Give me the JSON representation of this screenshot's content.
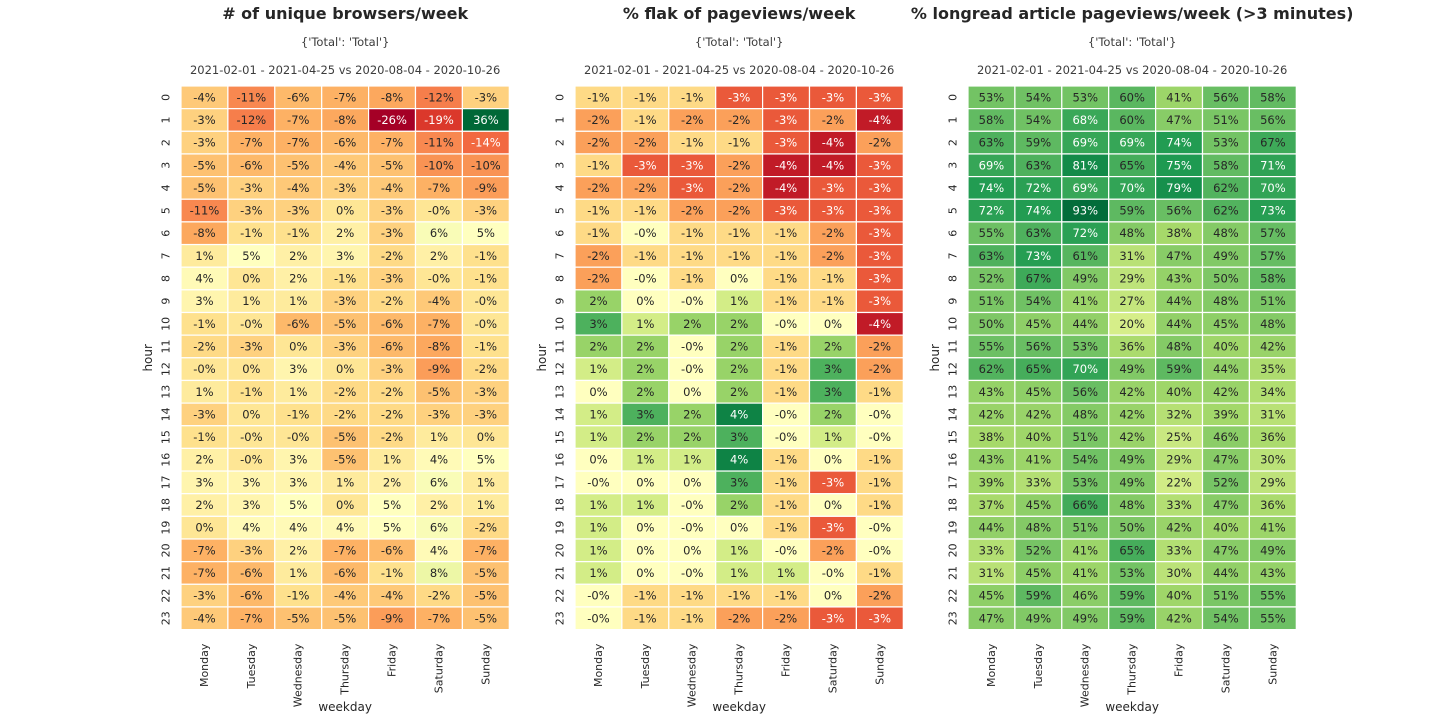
{
  "chart_data": [
    {
      "type": "heatmap",
      "title": "# of unique browsers/week",
      "subtitle": "{'Total': 'Total'}",
      "period": "2021-02-01 - 2021-04-25 vs 2020-08-04 - 2020-10-26",
      "xlabel": "weekday",
      "ylabel": "hour",
      "x": [
        "Monday",
        "Tuesday",
        "Wednesday",
        "Thursday",
        "Friday",
        "Saturday",
        "Sunday"
      ],
      "y": [
        "0",
        "1",
        "2",
        "3",
        "4",
        "5",
        "6",
        "7",
        "8",
        "9",
        "10",
        "11",
        "12",
        "13",
        "14",
        "15",
        "16",
        "17",
        "18",
        "19",
        "20",
        "21",
        "22",
        "23"
      ],
      "colormap": "RdYlGn",
      "color_range": [
        -26,
        36
      ],
      "cells": [
        [
          "-4%",
          "-11%",
          "-6%",
          "-7%",
          "-8%",
          "-12%",
          "-3%"
        ],
        [
          "-3%",
          "-12%",
          "-7%",
          "-8%",
          "-26%",
          "-19%",
          "36%"
        ],
        [
          "-3%",
          "-7%",
          "-7%",
          "-6%",
          "-7%",
          "-11%",
          "-14%"
        ],
        [
          "-5%",
          "-6%",
          "-5%",
          "-4%",
          "-5%",
          "-10%",
          "-10%"
        ],
        [
          "-5%",
          "-3%",
          "-4%",
          "-3%",
          "-4%",
          "-7%",
          "-9%"
        ],
        [
          "-11%",
          "-3%",
          "-3%",
          "0%",
          "-3%",
          "-0%",
          "-3%"
        ],
        [
          "-8%",
          "-1%",
          "-1%",
          "2%",
          "-3%",
          "6%",
          "5%"
        ],
        [
          "1%",
          "5%",
          "2%",
          "3%",
          "-2%",
          "2%",
          "-1%"
        ],
        [
          "4%",
          "0%",
          "2%",
          "-1%",
          "-3%",
          "-0%",
          "-1%"
        ],
        [
          "3%",
          "1%",
          "1%",
          "-3%",
          "-2%",
          "-4%",
          "-0%"
        ],
        [
          "-1%",
          "-0%",
          "-6%",
          "-5%",
          "-6%",
          "-7%",
          "-0%"
        ],
        [
          "-2%",
          "-3%",
          "0%",
          "-3%",
          "-6%",
          "-8%",
          "-1%"
        ],
        [
          "-0%",
          "0%",
          "3%",
          "0%",
          "-3%",
          "-9%",
          "-2%"
        ],
        [
          "1%",
          "-1%",
          "1%",
          "-2%",
          "-2%",
          "-5%",
          "-3%"
        ],
        [
          "-3%",
          "0%",
          "-1%",
          "-2%",
          "-2%",
          "-3%",
          "-3%"
        ],
        [
          "-1%",
          "-0%",
          "-0%",
          "-5%",
          "-2%",
          "1%",
          "0%"
        ],
        [
          "2%",
          "-0%",
          "3%",
          "-5%",
          "1%",
          "4%",
          "5%"
        ],
        [
          "3%",
          "3%",
          "3%",
          "1%",
          "2%",
          "6%",
          "1%"
        ],
        [
          "2%",
          "3%",
          "5%",
          "0%",
          "5%",
          "2%",
          "1%"
        ],
        [
          "0%",
          "4%",
          "4%",
          "4%",
          "5%",
          "6%",
          "-2%"
        ],
        [
          "-7%",
          "-3%",
          "2%",
          "-7%",
          "-6%",
          "4%",
          "-7%"
        ],
        [
          "-7%",
          "-6%",
          "1%",
          "-6%",
          "-1%",
          "8%",
          "-5%"
        ],
        [
          "-3%",
          "-6%",
          "-1%",
          "-4%",
          "-4%",
          "-2%",
          "-5%"
        ],
        [
          "-4%",
          "-7%",
          "-5%",
          "-5%",
          "-9%",
          "-7%",
          "-5%"
        ]
      ]
    },
    {
      "type": "heatmap",
      "title": "% flak of pageviews/week",
      "subtitle": "{'Total': 'Total'}",
      "period": "2021-02-01 - 2021-04-25 vs 2020-08-04 - 2020-10-26",
      "xlabel": "weekday",
      "ylabel": "hour",
      "x": [
        "Monday",
        "Tuesday",
        "Wednesday",
        "Thursday",
        "Friday",
        "Saturday",
        "Sunday"
      ],
      "y": [
        "0",
        "1",
        "2",
        "3",
        "4",
        "5",
        "6",
        "7",
        "8",
        "9",
        "10",
        "11",
        "12",
        "13",
        "14",
        "15",
        "16",
        "17",
        "18",
        "19",
        "20",
        "21",
        "22",
        "23"
      ],
      "colormap": "RdYlGn",
      "color_range": [
        -4.5,
        4.5
      ],
      "cells": [
        [
          "-1%",
          "-1%",
          "-1%",
          "-3%",
          "-3%",
          "-3%",
          "-3%"
        ],
        [
          "-2%",
          "-1%",
          "-2%",
          "-2%",
          "-3%",
          "-2%",
          "-4%"
        ],
        [
          "-2%",
          "-2%",
          "-1%",
          "-1%",
          "-3%",
          "-4%",
          "-2%"
        ],
        [
          "-1%",
          "-3%",
          "-3%",
          "-2%",
          "-4%",
          "-4%",
          "-3%"
        ],
        [
          "-2%",
          "-2%",
          "-3%",
          "-2%",
          "-4%",
          "-3%",
          "-3%"
        ],
        [
          "-1%",
          "-1%",
          "-2%",
          "-2%",
          "-3%",
          "-3%",
          "-3%"
        ],
        [
          "-1%",
          "-0%",
          "-1%",
          "-1%",
          "-1%",
          "-2%",
          "-3%"
        ],
        [
          "-2%",
          "-1%",
          "-1%",
          "-1%",
          "-1%",
          "-2%",
          "-3%"
        ],
        [
          "-2%",
          "-0%",
          "-1%",
          "0%",
          "-1%",
          "-1%",
          "-3%"
        ],
        [
          "2%",
          "0%",
          "-0%",
          "1%",
          "-1%",
          "-1%",
          "-3%"
        ],
        [
          "3%",
          "1%",
          "2%",
          "2%",
          "-0%",
          "0%",
          "-4%"
        ],
        [
          "2%",
          "2%",
          "-0%",
          "2%",
          "-1%",
          "2%",
          "-2%"
        ],
        [
          "1%",
          "2%",
          "-0%",
          "2%",
          "-1%",
          "3%",
          "-2%"
        ],
        [
          "0%",
          "2%",
          "0%",
          "2%",
          "-1%",
          "3%",
          "-1%"
        ],
        [
          "1%",
          "3%",
          "2%",
          "4%",
          "-0%",
          "2%",
          "-0%"
        ],
        [
          "1%",
          "2%",
          "2%",
          "3%",
          "-0%",
          "1%",
          "-0%"
        ],
        [
          "0%",
          "1%",
          "1%",
          "4%",
          "-1%",
          "0%",
          "-1%"
        ],
        [
          "-0%",
          "0%",
          "0%",
          "3%",
          "-1%",
          "-3%",
          "-1%"
        ],
        [
          "1%",
          "1%",
          "-0%",
          "2%",
          "-1%",
          "0%",
          "-1%"
        ],
        [
          "1%",
          "0%",
          "-0%",
          "0%",
          "-1%",
          "-3%",
          "-0%"
        ],
        [
          "1%",
          "0%",
          "0%",
          "1%",
          "-0%",
          "-2%",
          "-0%"
        ],
        [
          "1%",
          "0%",
          "-0%",
          "1%",
          "1%",
          "-0%",
          "-1%"
        ],
        [
          "-0%",
          "-1%",
          "-1%",
          "-1%",
          "-1%",
          "0%",
          "-2%"
        ],
        [
          "-0%",
          "-1%",
          "-1%",
          "-2%",
          "-2%",
          "-3%",
          "-3%"
        ]
      ]
    },
    {
      "type": "heatmap",
      "title": "% longread article pageviews/week (>3 minutes)",
      "subtitle": "{'Total': 'Total'}",
      "period": "2021-02-01 - 2021-04-25 vs 2020-08-04 - 2020-10-26",
      "xlabel": "weekday",
      "ylabel": "hour",
      "x": [
        "Monday",
        "Tuesday",
        "Wednesday",
        "Thursday",
        "Friday",
        "Saturday",
        "Sunday"
      ],
      "y": [
        "0",
        "1",
        "2",
        "3",
        "4",
        "5",
        "6",
        "7",
        "8",
        "9",
        "10",
        "11",
        "12",
        "13",
        "14",
        "15",
        "16",
        "17",
        "18",
        "19",
        "20",
        "21",
        "22",
        "23"
      ],
      "colormap": "RdYlGn",
      "color_range": [
        -95,
        95
      ],
      "cells": [
        [
          "53%",
          "54%",
          "53%",
          "60%",
          "41%",
          "56%",
          "58%"
        ],
        [
          "58%",
          "54%",
          "68%",
          "60%",
          "47%",
          "51%",
          "56%"
        ],
        [
          "63%",
          "59%",
          "69%",
          "69%",
          "74%",
          "53%",
          "67%"
        ],
        [
          "69%",
          "63%",
          "81%",
          "65%",
          "75%",
          "58%",
          "71%"
        ],
        [
          "74%",
          "72%",
          "69%",
          "70%",
          "79%",
          "62%",
          "70%"
        ],
        [
          "72%",
          "74%",
          "93%",
          "59%",
          "56%",
          "62%",
          "73%"
        ],
        [
          "55%",
          "63%",
          "72%",
          "48%",
          "38%",
          "48%",
          "57%"
        ],
        [
          "63%",
          "73%",
          "61%",
          "31%",
          "47%",
          "49%",
          "57%"
        ],
        [
          "52%",
          "67%",
          "49%",
          "29%",
          "43%",
          "50%",
          "58%"
        ],
        [
          "51%",
          "54%",
          "41%",
          "27%",
          "44%",
          "48%",
          "51%"
        ],
        [
          "50%",
          "45%",
          "44%",
          "20%",
          "44%",
          "45%",
          "48%"
        ],
        [
          "55%",
          "56%",
          "53%",
          "36%",
          "48%",
          "40%",
          "42%"
        ],
        [
          "62%",
          "65%",
          "70%",
          "49%",
          "59%",
          "44%",
          "35%"
        ],
        [
          "43%",
          "45%",
          "56%",
          "42%",
          "40%",
          "42%",
          "34%"
        ],
        [
          "42%",
          "42%",
          "48%",
          "42%",
          "32%",
          "39%",
          "31%"
        ],
        [
          "38%",
          "40%",
          "51%",
          "42%",
          "25%",
          "46%",
          "36%"
        ],
        [
          "43%",
          "41%",
          "54%",
          "49%",
          "29%",
          "47%",
          "30%"
        ],
        [
          "39%",
          "33%",
          "53%",
          "49%",
          "22%",
          "52%",
          "29%"
        ],
        [
          "37%",
          "45%",
          "66%",
          "48%",
          "33%",
          "47%",
          "36%"
        ],
        [
          "44%",
          "48%",
          "51%",
          "50%",
          "42%",
          "40%",
          "41%"
        ],
        [
          "33%",
          "52%",
          "41%",
          "65%",
          "33%",
          "47%",
          "49%"
        ],
        [
          "31%",
          "45%",
          "41%",
          "53%",
          "30%",
          "44%",
          "43%"
        ],
        [
          "45%",
          "59%",
          "46%",
          "59%",
          "40%",
          "51%",
          "55%"
        ],
        [
          "47%",
          "49%",
          "49%",
          "59%",
          "42%",
          "54%",
          "55%"
        ]
      ]
    }
  ]
}
